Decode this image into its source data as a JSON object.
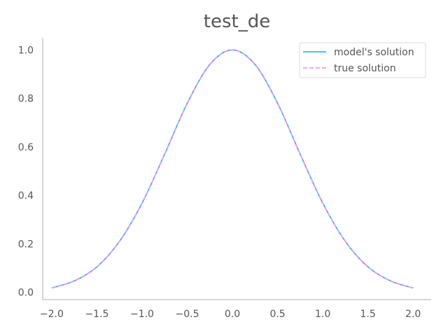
{
  "chart_data": {
    "type": "line",
    "title": "test_de",
    "xlabel": "",
    "ylabel": "",
    "xlim": [
      -2.1,
      2.2
    ],
    "ylim": [
      -0.03,
      1.05
    ],
    "grid": false,
    "legend_position": "top-right",
    "x_ticks": [
      -2.0,
      -1.5,
      -1.0,
      -0.5,
      0.0,
      0.5,
      1.0,
      1.5,
      2.0
    ],
    "x_tick_labels": [
      "−2.0",
      "−1.5",
      "−1.0",
      "−0.5",
      "0.0",
      "0.5",
      "1.0",
      "1.5",
      "2.0"
    ],
    "y_ticks": [
      0.0,
      0.2,
      0.4,
      0.6,
      0.8,
      1.0
    ],
    "y_tick_labels": [
      "0.0",
      "0.2",
      "0.4",
      "0.6",
      "0.8",
      "1.0"
    ],
    "x": [
      -2.0,
      -1.75,
      -1.5,
      -1.25,
      -1.0,
      -0.75,
      -0.5,
      -0.25,
      0.0,
      0.25,
      0.5,
      0.75,
      1.0,
      1.25,
      1.5,
      1.75,
      2.0
    ],
    "series": [
      {
        "name": "model's solution",
        "color": "#2bb5f0",
        "style": "solid",
        "values": [
          0.018,
          0.047,
          0.105,
          0.21,
          0.368,
          0.57,
          0.78,
          0.94,
          1.0,
          0.94,
          0.78,
          0.57,
          0.368,
          0.21,
          0.105,
          0.047,
          0.018
        ]
      },
      {
        "name": "true solution",
        "color": "#f29ae0",
        "style": "dashed",
        "values": [
          0.018,
          0.047,
          0.105,
          0.21,
          0.368,
          0.57,
          0.779,
          0.939,
          1.0,
          0.939,
          0.779,
          0.57,
          0.368,
          0.21,
          0.105,
          0.047,
          0.018
        ]
      }
    ]
  },
  "colors": {
    "axis": "#c8c8c8",
    "text": "#555555"
  }
}
